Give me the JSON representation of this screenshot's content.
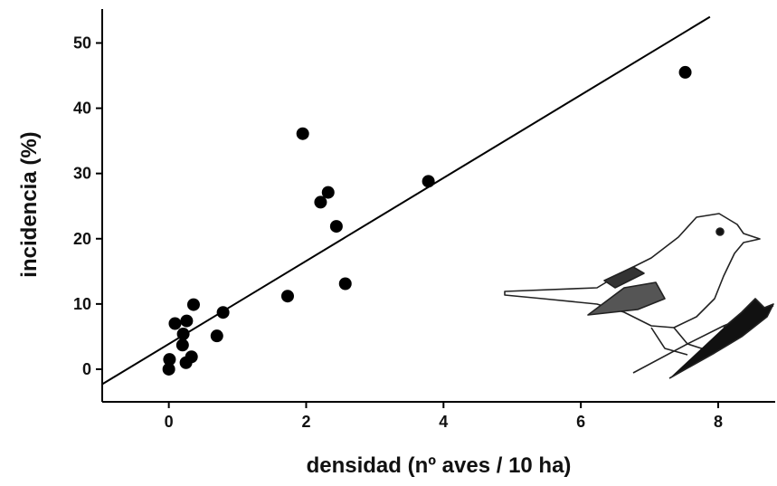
{
  "chart_data": {
    "type": "scatter",
    "xlabel": "densidad (nº aves / 10 ha)",
    "ylabel": "incidencia  (%)",
    "color": "#000000",
    "x": [
      0,
      0.01,
      0.09,
      0.2,
      0.21,
      0.26,
      0.25,
      0.33,
      0.36,
      0.7,
      0.79,
      1.73,
      1.95,
      2.21,
      2.32,
      2.44,
      2.57,
      3.78,
      7.52
    ],
    "y": [
      0,
      1.5,
      7.0,
      3.7,
      5.4,
      7.4,
      1.0,
      1.9,
      9.9,
      5.1,
      8.7,
      11.2,
      36.1,
      25.6,
      27.1,
      21.9,
      13.1,
      28.8,
      45.5
    ],
    "trend_line": {
      "x": [
        -0.97,
        7.88
      ],
      "y": [
        -2.3,
        54.0
      ]
    },
    "xlim": [
      -0.97,
      8.83
    ],
    "ylim": [
      -5,
      55.2
    ],
    "xticks": [
      0,
      2,
      4,
      6,
      8
    ],
    "yticks": [
      0,
      10,
      20,
      30,
      40,
      50
    ],
    "grid": false
  }
}
